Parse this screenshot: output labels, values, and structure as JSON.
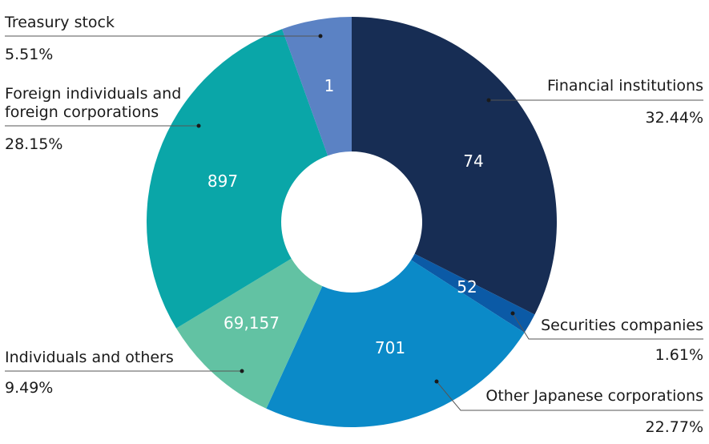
{
  "chart_data": {
    "type": "pie",
    "donut": true,
    "categories": [
      "Financial institutions",
      "Securities companies",
      "Other Japanese corporations",
      "Individuals and others",
      "Foreign individuals and foreign corporations",
      "Treasury stock"
    ],
    "values": [
      32.44,
      1.61,
      22.77,
      9.49,
      28.15,
      5.51
    ],
    "value_labels": [
      "32.44%",
      "1.61%",
      "22.77%",
      "9.49%",
      "28.15%",
      "5.51%"
    ],
    "slice_labels": [
      "74",
      "52",
      "701",
      "69,157",
      "897",
      "1"
    ],
    "colors": [
      "#172d54",
      "#0b5aa6",
      "#0b8ac8",
      "#62c2a3",
      "#0aa6a8",
      "#5b82c4"
    ],
    "legend": "none"
  }
}
